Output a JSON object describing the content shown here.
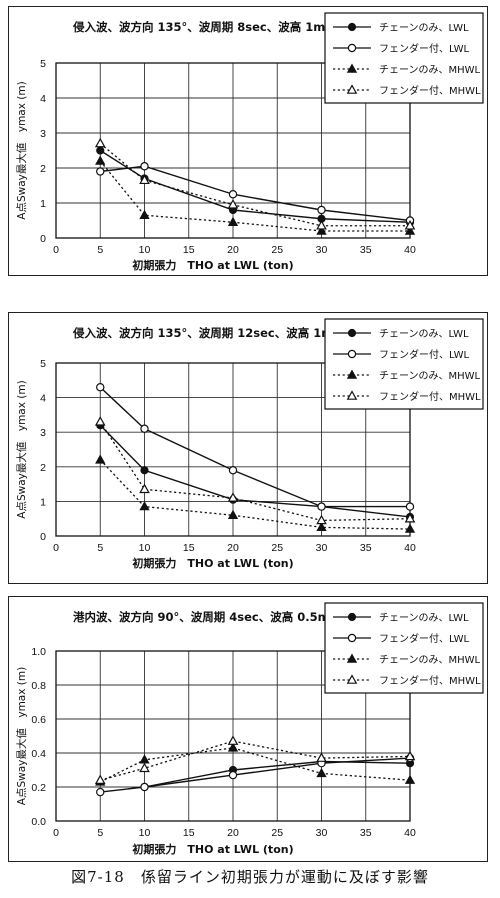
{
  "legend_entries": [
    "チェーンのみ、LWL",
    "フェンダー付、LWL",
    "チェーンのみ、MHWL",
    "フェンダー付、MHWL"
  ],
  "caption": "図7-18　係留ライン初期張力が運動に及ぼす影響",
  "colors": {
    "ink": "#111111",
    "frame": "#222222",
    "grid": "#333333",
    "paper": "#ffffff"
  },
  "chart_data": [
    {
      "type": "line",
      "title": "侵入波、波方向 135°、波周期 8sec、波高 1m",
      "xlabel": "初期張力　THO at LWL (ton)",
      "ylabel": "A点Sway最大値　ymax (m)",
      "xlim": [
        0,
        40
      ],
      "ylim": [
        0,
        5
      ],
      "xticks": [
        "0",
        "5",
        "10",
        "15",
        "20",
        "25",
        "30",
        "35",
        "40"
      ],
      "yticks": [
        "0",
        "1",
        "2",
        "3",
        "4",
        "5"
      ],
      "grid": true,
      "legend_position": "top-right",
      "x": [
        5,
        10,
        20,
        30,
        40
      ],
      "series": [
        {
          "name": "チェーンのみ、LWL",
          "values": [
            2.5,
            1.7,
            0.8,
            0.55,
            0.45
          ],
          "marker": "filled-circle",
          "line": "solid"
        },
        {
          "name": "フェンダー付、LWL",
          "values": [
            1.9,
            2.05,
            1.25,
            0.8,
            0.5
          ],
          "marker": "open-circle",
          "line": "solid"
        },
        {
          "name": "チェーンのみ、MHWL",
          "values": [
            2.2,
            0.65,
            0.45,
            0.2,
            0.2
          ],
          "marker": "filled-triangle",
          "line": "dotted"
        },
        {
          "name": "フェンダー付、MHWL",
          "values": [
            2.7,
            1.65,
            0.95,
            0.35,
            0.35
          ],
          "marker": "open-triangle",
          "line": "dotted"
        }
      ]
    },
    {
      "type": "line",
      "title": "侵入波、波方向 135°、波周期 12sec、波高 1m",
      "xlabel": "初期張力　THO at LWL (ton)",
      "ylabel": "A点Sway最大値　ymax (m)",
      "xlim": [
        0,
        40
      ],
      "ylim": [
        0,
        5
      ],
      "xticks": [
        "0",
        "5",
        "10",
        "15",
        "20",
        "25",
        "30",
        "35",
        "40"
      ],
      "yticks": [
        "0",
        "1",
        "2",
        "3",
        "4",
        "5"
      ],
      "grid": true,
      "legend_position": "top-right",
      "x": [
        5,
        10,
        20,
        30,
        40
      ],
      "series": [
        {
          "name": "チェーンのみ、LWL",
          "values": [
            3.2,
            1.9,
            1.05,
            0.85,
            0.55
          ],
          "marker": "filled-circle",
          "line": "solid"
        },
        {
          "name": "フェンダー付、LWL",
          "values": [
            4.3,
            3.1,
            1.9,
            0.85,
            0.85
          ],
          "marker": "open-circle",
          "line": "solid"
        },
        {
          "name": "チェーンのみ、MHWL",
          "values": [
            2.2,
            0.85,
            0.6,
            0.25,
            0.2
          ],
          "marker": "filled-triangle",
          "line": "dotted"
        },
        {
          "name": "フェンダー付、MHWL",
          "values": [
            3.3,
            1.35,
            1.1,
            0.45,
            0.5
          ],
          "marker": "open-triangle",
          "line": "dotted"
        }
      ]
    },
    {
      "type": "line",
      "title": "港内波、波方向 90°、波周期 4sec、波高 0.5m",
      "xlabel": "初期張力　THO at LWL (ton)",
      "ylabel": "A点Sway最大値　ymax (m)",
      "xlim": [
        0,
        40
      ],
      "ylim": [
        0,
        1.0
      ],
      "xticks": [
        "0",
        "5",
        "10",
        "15",
        "20",
        "25",
        "30",
        "35",
        "40"
      ],
      "yticks": [
        "0.0",
        "0.2",
        "0.4",
        "0.6",
        "0.8",
        "1.0"
      ],
      "grid": true,
      "legend_position": "top-right",
      "x": [
        5,
        10,
        20,
        30,
        40
      ],
      "series": [
        {
          "name": "チェーンのみ、LWL",
          "values": [
            null,
            0.2,
            0.3,
            0.35,
            0.34
          ],
          "marker": "filled-circle",
          "line": "solid"
        },
        {
          "name": "フェンダー付、LWL",
          "values": [
            0.17,
            0.2,
            0.27,
            0.34,
            0.37
          ],
          "marker": "open-circle",
          "line": "solid"
        },
        {
          "name": "チェーンのみ、MHWL",
          "values": [
            0.23,
            0.36,
            0.43,
            0.28,
            0.24
          ],
          "marker": "filled-triangle",
          "line": "dotted"
        },
        {
          "name": "フェンダー付、MHWL",
          "values": [
            0.24,
            0.31,
            0.47,
            0.37,
            0.38
          ],
          "marker": "open-triangle",
          "line": "dotted"
        }
      ]
    }
  ]
}
